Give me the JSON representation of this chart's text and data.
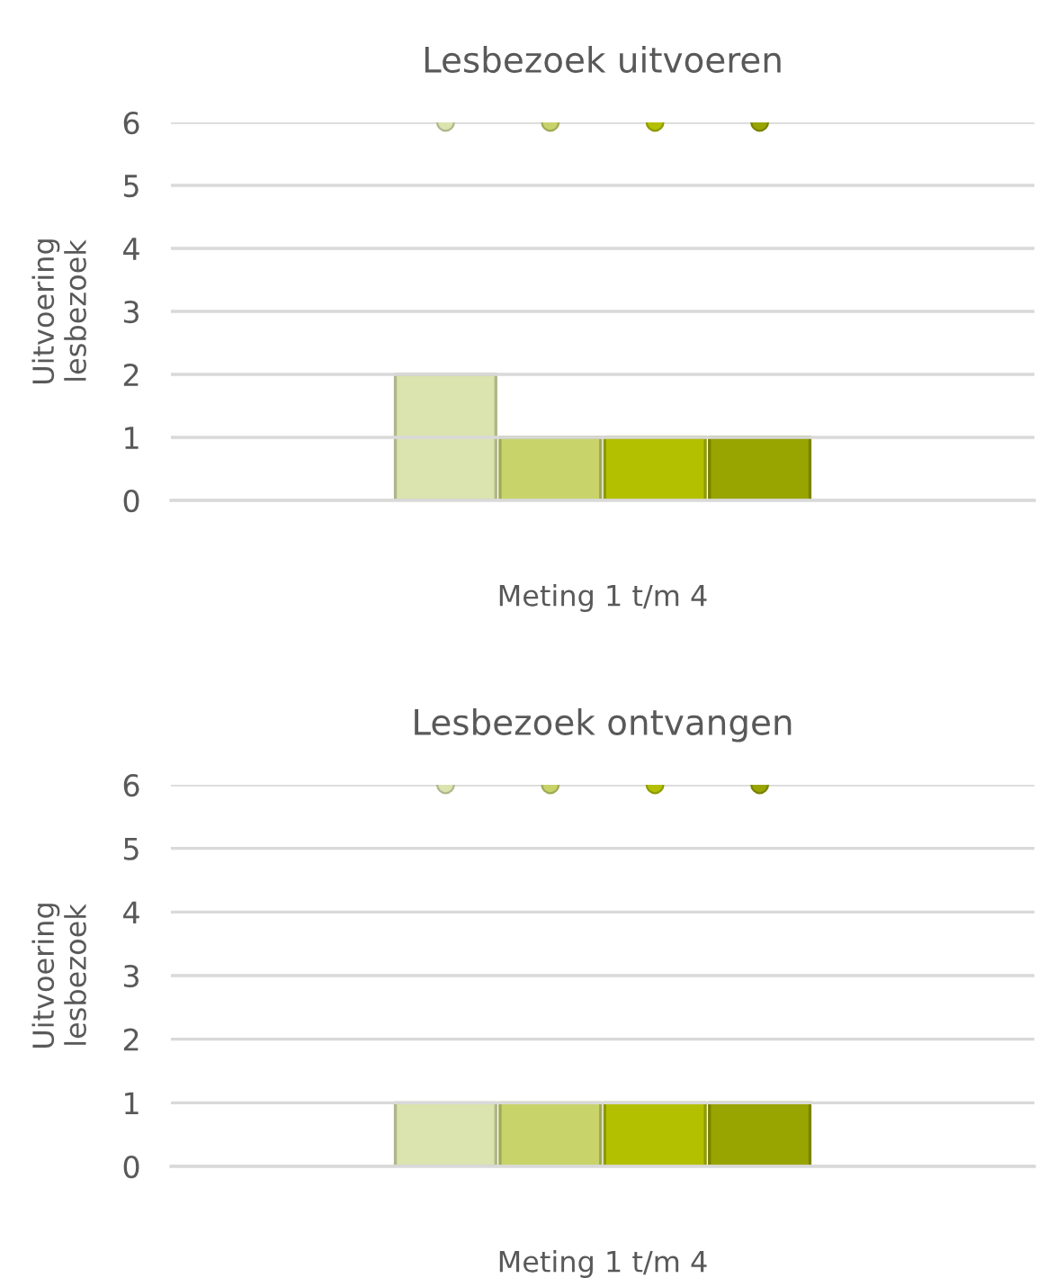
{
  "chart_data": [
    {
      "type": "bar",
      "title": "Lesbezoek uitvoeren",
      "xlabel": "Meting 1 t/m 4",
      "ylabel": "Uitvoering\nlesbezoek",
      "categories": [
        null
      ],
      "series": [
        {
          "color": "#dbe3ae",
          "values": [
            2
          ]
        },
        {
          "color": "#c8d46a",
          "values": [
            1
          ]
        },
        {
          "color": "#b3c000",
          "values": [
            1
          ]
        },
        {
          "color": "#98a400",
          "values": [
            1
          ]
        },
        {
          "type": "scatter",
          "color": "#dbe3ae",
          "values": [
            6
          ]
        },
        {
          "type": "scatter",
          "color": "#c8d46a",
          "values": [
            6
          ]
        },
        {
          "type": "scatter",
          "color": "#b3c000",
          "values": [
            6
          ]
        },
        {
          "type": "scatter",
          "color": "#98a400",
          "values": [
            6
          ]
        }
      ],
      "ylim": [
        0,
        6
      ],
      "yticks": [
        0,
        1,
        2,
        3,
        4,
        5,
        6
      ],
      "grid": "y",
      "marker": "circle"
    },
    {
      "type": "bar",
      "title": "Lesbezoek ontvangen",
      "xlabel": "Meting 1 t/m 4",
      "ylabel": "Uitvoering\nlesbezoek",
      "categories": [
        null
      ],
      "series": [
        {
          "color": "#dbe3ae",
          "values": [
            1
          ]
        },
        {
          "color": "#c8d46a",
          "values": [
            1
          ]
        },
        {
          "color": "#b3c000",
          "values": [
            1
          ]
        },
        {
          "color": "#98a400",
          "values": [
            1
          ]
        },
        {
          "type": "scatter",
          "color": "#dbe3ae",
          "values": [
            6
          ]
        },
        {
          "type": "scatter",
          "color": "#c8d46a",
          "values": [
            6
          ]
        },
        {
          "type": "scatter",
          "color": "#b3c000",
          "values": [
            6
          ]
        },
        {
          "type": "scatter",
          "color": "#98a400",
          "values": [
            6
          ]
        }
      ],
      "ylim": [
        0,
        6
      ],
      "yticks": [
        0,
        1,
        2,
        3,
        4,
        5,
        6
      ],
      "grid": "y",
      "marker": "circle"
    }
  ]
}
